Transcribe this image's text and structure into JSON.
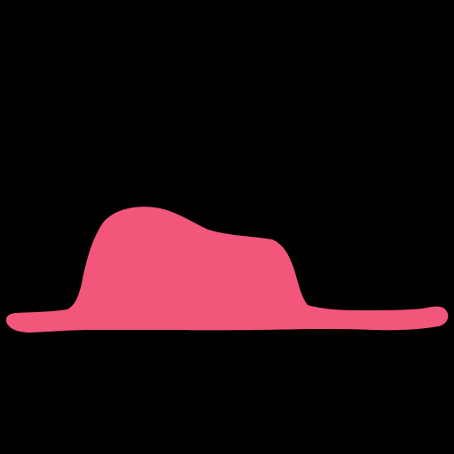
{
  "scene": {
    "background_color": "#000000",
    "shape_color": "#F2567A",
    "shape_name": "pink-hat-silhouette"
  }
}
